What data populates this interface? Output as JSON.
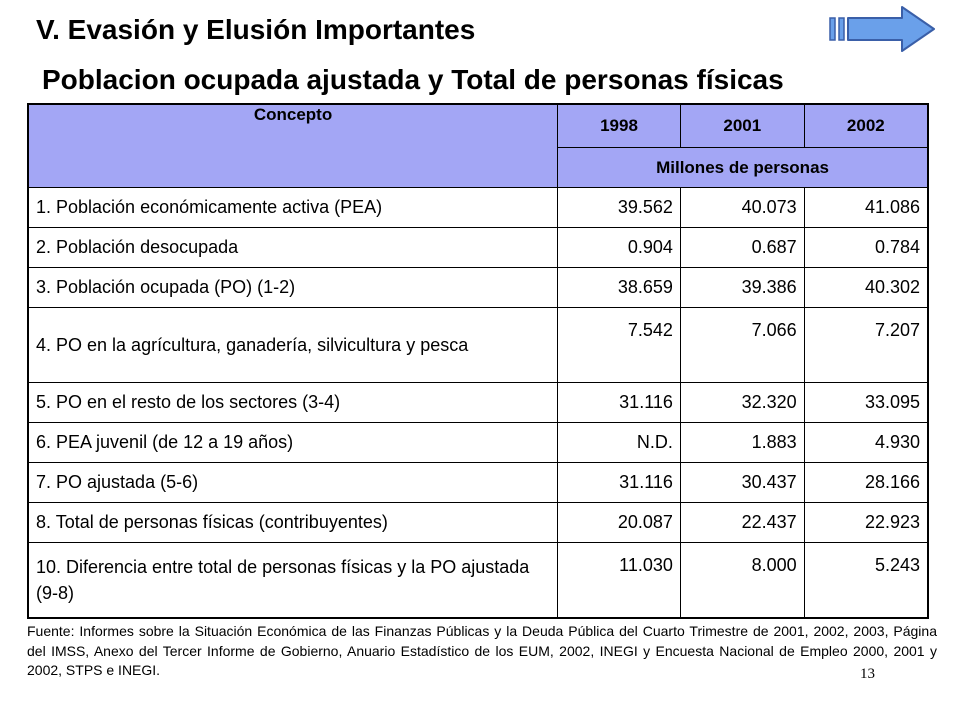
{
  "slide": {
    "section_title": "V. Evasión y Elusión Importantes",
    "table_title": "Poblacion ocupada ajustada y Total de personas físicas",
    "page_number": "13",
    "nav_icon": "next-arrow-icon",
    "colors": {
      "header_fill": "#a3a6f5",
      "arrow_fill": "#6aa0ea",
      "arrow_stroke": "#3a5fa8"
    }
  },
  "table": {
    "concept_header": "Concepto",
    "years": [
      "1998",
      "2001",
      "2002"
    ],
    "unit_header": "Millones de personas",
    "rows": [
      {
        "label": "1. Población económicamente activa (PEA)",
        "values": [
          "39.562",
          "40.073",
          "41.086"
        ]
      },
      {
        "label": "2. Población desocupada",
        "values": [
          "0.904",
          "0.687",
          "0.784"
        ]
      },
      {
        "label": "3. Población ocupada (PO) (1-2)",
        "values": [
          "38.659",
          "39.386",
          "40.302"
        ]
      },
      {
        "label": "4. PO en la agrícultura, ganadería, silvicultura y pesca",
        "values": [
          "7.542",
          "7.066",
          "7.207"
        ]
      },
      {
        "label": "5. PO en el resto de los sectores (3-4)",
        "values": [
          "31.116",
          "32.320",
          "33.095"
        ]
      },
      {
        "label": "6. PEA juvenil (de 12 a 19 años)",
        "values": [
          "N.D.",
          "1.883",
          "4.930"
        ]
      },
      {
        "label": "7. PO ajustada (5-6)",
        "values": [
          "31.116",
          "30.437",
          "28.166"
        ]
      },
      {
        "label": "8. Total de personas físicas (contribuyentes)",
        "values": [
          "20.087",
          "22.437",
          "22.923"
        ]
      },
      {
        "label": "10. Diferencia entre total de personas físicas y la PO ajustada (9-8)",
        "values": [
          "11.030",
          "8.000",
          "5.243"
        ]
      }
    ]
  },
  "source": "Fuente: Informes sobre la Situación Económica de las Finanzas Públicas y la Deuda Pública del Cuarto Trimestre de 2001, 2002, 2003, Página del IMSS, Anexo del Tercer Informe de Gobierno, Anuario Estadístico de los EUM, 2002, INEGI y Encuesta Nacional de Empleo 2000, 2001 y 2002, STPS e INEGI."
}
